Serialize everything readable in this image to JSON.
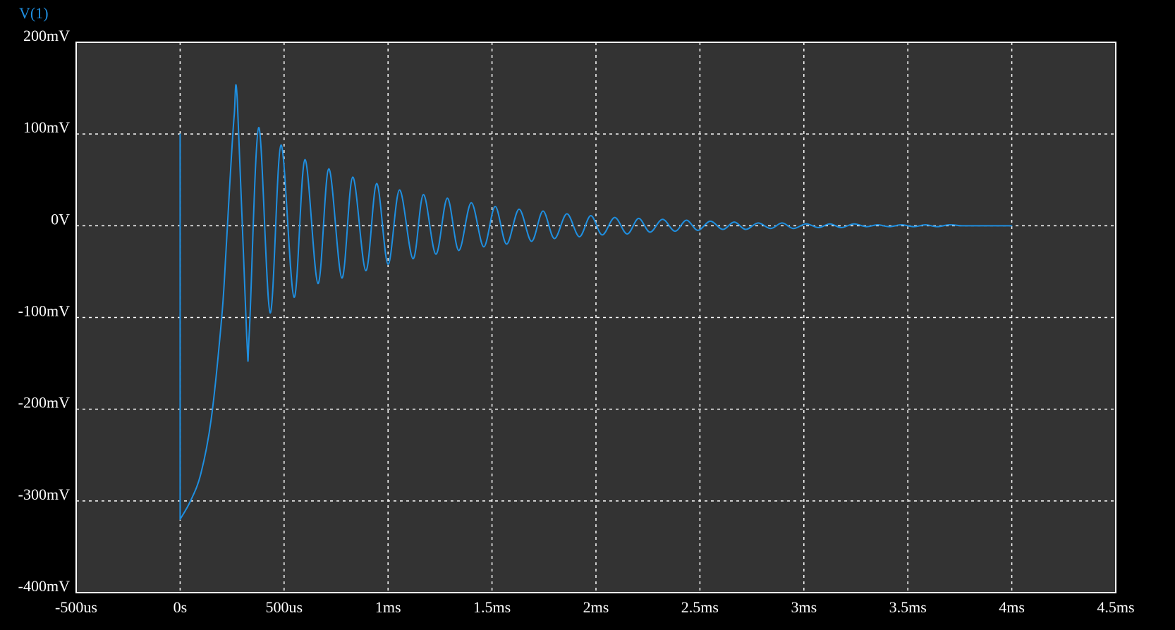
{
  "colors": {
    "background": "#000000",
    "plot_area": "#333333",
    "frame": "#ffffff",
    "grid": "#ffffff",
    "trace": "#1f8fe0",
    "text": "#ffffff"
  },
  "chart_data": {
    "type": "line",
    "title": "",
    "xlabel": "",
    "ylabel": "",
    "grid": true,
    "xlim": [
      -0.0005,
      0.0045
    ],
    "ylim": [
      -0.4,
      0.2
    ],
    "x_ticks": [
      {
        "value": -0.0005,
        "label": "-500us"
      },
      {
        "value": 0,
        "label": "0s"
      },
      {
        "value": 0.0005,
        "label": "500us"
      },
      {
        "value": 0.001,
        "label": "1ms"
      },
      {
        "value": 0.0015,
        "label": "1.5ms"
      },
      {
        "value": 0.002,
        "label": "2ms"
      },
      {
        "value": 0.0025,
        "label": "2.5ms"
      },
      {
        "value": 0.003,
        "label": "3ms"
      },
      {
        "value": 0.0035,
        "label": "3.5ms"
      },
      {
        "value": 0.004,
        "label": "4ms"
      },
      {
        "value": 0.0045,
        "label": "4.5ms"
      }
    ],
    "y_ticks": [
      {
        "value": 0.2,
        "label": "200mV"
      },
      {
        "value": 0.1,
        "label": "100mV"
      },
      {
        "value": 0,
        "label": "0V"
      },
      {
        "value": -0.1,
        "label": "-100mV"
      },
      {
        "value": -0.2,
        "label": "-200mV"
      },
      {
        "value": -0.3,
        "label": "-300mV"
      },
      {
        "value": -0.4,
        "label": "-400mV"
      }
    ],
    "series": [
      {
        "name": "V(1)",
        "color": "#1f8fe0",
        "x": [
          0,
          0,
          0,
          5e-05,
          0.0001,
          0.00015,
          0.0002,
          0.00022,
          0.00024,
          0.00026,
          0.000275,
          0.00032,
          0.000333,
          0.000378,
          0.000433,
          0.000485,
          0.000548,
          0.0006,
          0.000663,
          0.000715,
          0.000778,
          0.00083,
          0.000893,
          0.000945,
          0.001,
          0.001055,
          0.00112,
          0.00117,
          0.00123,
          0.001285,
          0.00134,
          0.0014,
          0.00146,
          0.001515,
          0.00157,
          0.00163,
          0.00169,
          0.001745,
          0.0018,
          0.00186,
          0.00192,
          0.001975,
          0.00203,
          0.00209,
          0.00215,
          0.002205,
          0.00226,
          0.00232,
          0.00238,
          0.002435,
          0.00249,
          0.00255,
          0.00261,
          0.002665,
          0.00272,
          0.00278,
          0.00284,
          0.002895,
          0.00295,
          0.00301,
          0.00307,
          0.003125,
          0.00318,
          0.00324,
          0.0033,
          0.003355,
          0.00341,
          0.00347,
          0.00353,
          0.003585,
          0.00364,
          0.0037,
          0.00376,
          0.003815,
          0.00387,
          0.00393,
          0.004
        ],
        "y": [
          0.1,
          -0.32,
          -0.32,
          -0.3,
          -0.27,
          -0.21,
          -0.1,
          -0.03,
          0.05,
          0.12,
          0.137,
          -0.12,
          -0.115,
          0.107,
          -0.095,
          0.088,
          -0.078,
          0.072,
          -0.063,
          0.062,
          -0.057,
          0.053,
          -0.049,
          0.046,
          -0.042,
          0.039,
          -0.036,
          0.034,
          -0.031,
          0.03,
          -0.027,
          0.025,
          -0.023,
          0.021,
          -0.02,
          0.018,
          -0.017,
          0.016,
          -0.014,
          0.013,
          -0.012,
          0.011,
          -0.01,
          0.009,
          -0.009,
          0.008,
          -0.007,
          0.007,
          -0.006,
          0.006,
          -0.005,
          0.005,
          -0.004,
          0.004,
          -0.004,
          0.003,
          -0.003,
          0.003,
          -0.003,
          0.002,
          -0.002,
          0.002,
          -0.002,
          0.002,
          -0.001,
          0.001,
          -0.001,
          0.001,
          -0.001,
          0.001,
          -0.001,
          0.001,
          0,
          0,
          0,
          0,
          0
        ]
      }
    ]
  }
}
